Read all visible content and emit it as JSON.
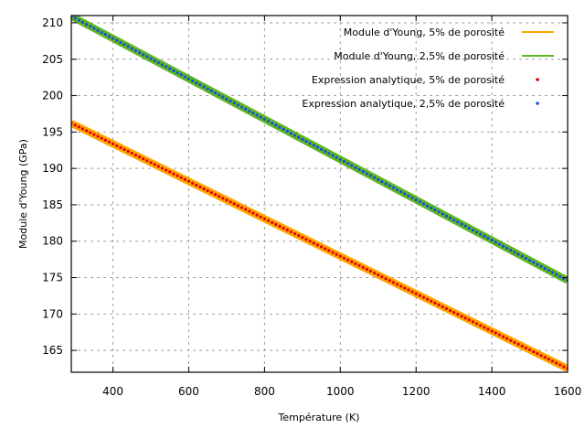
{
  "chart_data": {
    "type": "line",
    "xlabel": "Température (K)",
    "ylabel": "Module d'Young (GPa)",
    "xlim": [
      290,
      1600
    ],
    "ylim": [
      162,
      211
    ],
    "xticks": [
      400,
      600,
      800,
      1000,
      1200,
      1400,
      1600
    ],
    "yticks": [
      165,
      170,
      175,
      180,
      185,
      190,
      195,
      200,
      205,
      210
    ],
    "grid": true,
    "legend_position": "top-right",
    "series": [
      {
        "name": "Module d'Young, 5% de porosité",
        "kind": "line",
        "color": "#ffa500",
        "x": [
          290,
          1600
        ],
        "y": [
          196.2,
          162.5
        ]
      },
      {
        "name": "Module d'Young, 2,5% de porosité",
        "kind": "line",
        "color": "#5fb624",
        "x": [
          290,
          1600
        ],
        "y": [
          210.9,
          174.6
        ]
      },
      {
        "name": "Expression analytique, 5% de porosité",
        "kind": "points",
        "color": "#e00000",
        "x_start": 290,
        "x_end": 1600,
        "x_step": 10,
        "y_start": 196.2,
        "y_end": 162.5
      },
      {
        "name": "Expression analytique, 2,5% de porosité",
        "kind": "points",
        "color": "#1a4fd6",
        "x_start": 290,
        "x_end": 1600,
        "x_step": 10,
        "y_start": 210.9,
        "y_end": 174.6
      }
    ]
  }
}
